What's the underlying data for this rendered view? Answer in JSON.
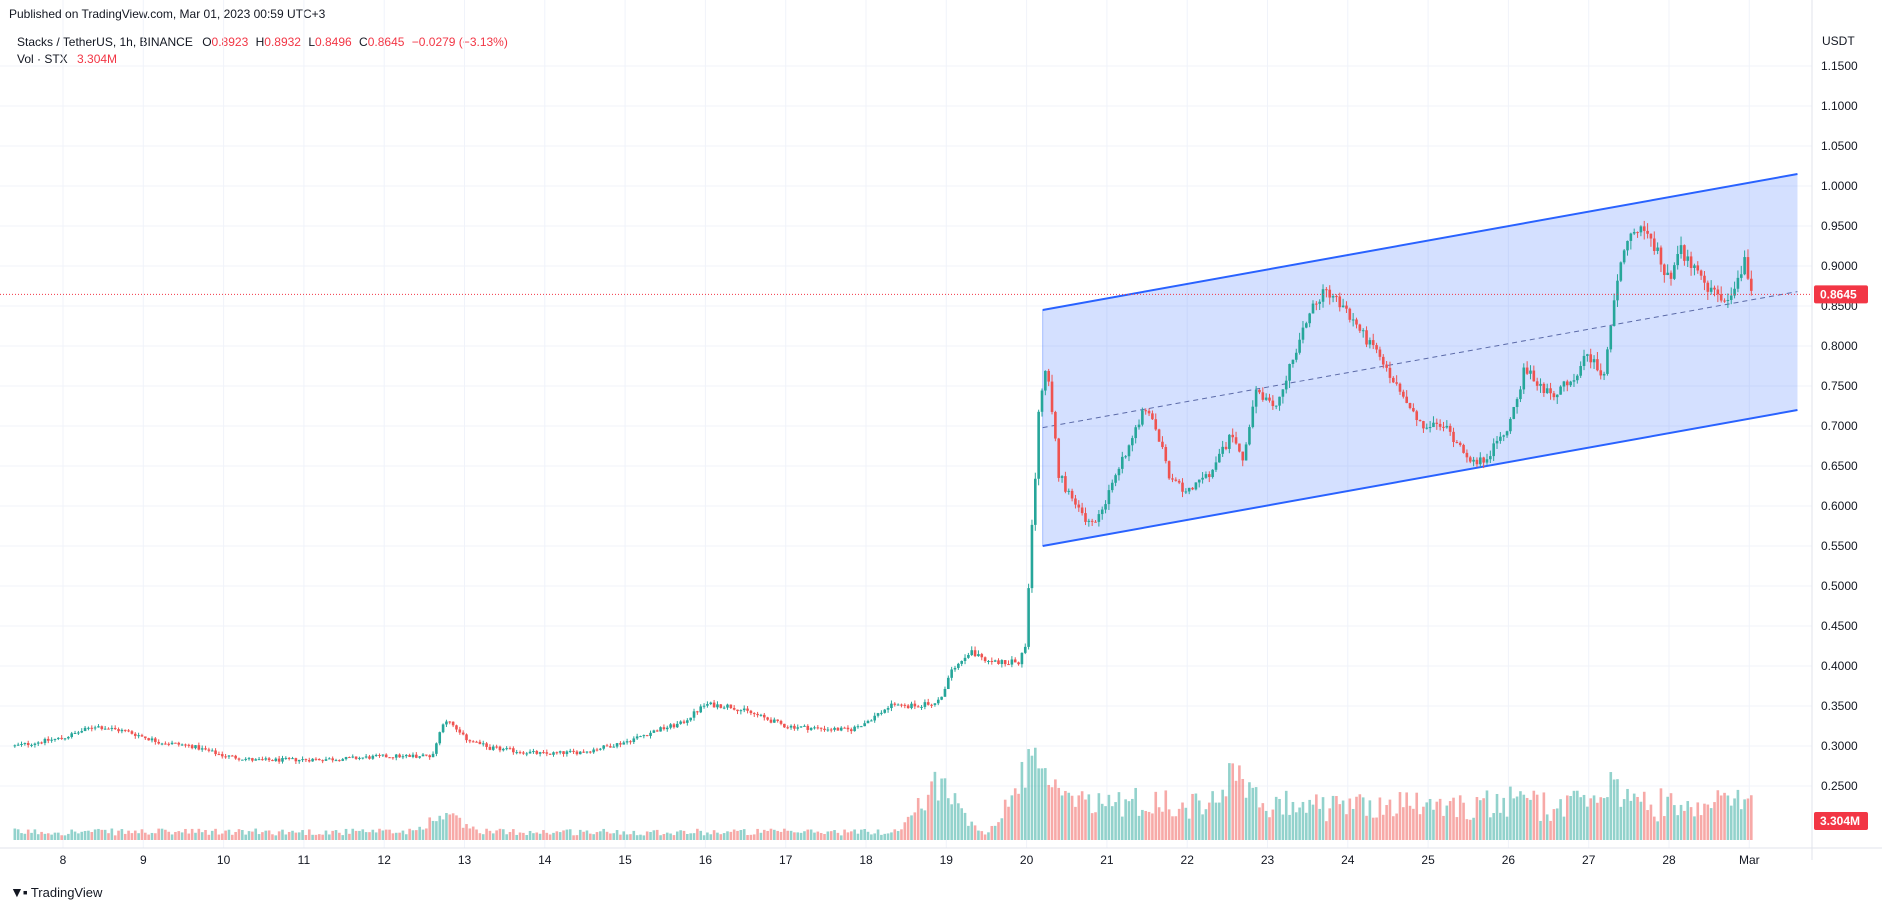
{
  "published": "Published on TradingView.com, Mar 01, 2023 00:59 UTC+3",
  "symbol": {
    "title": "Stacks / TetherUS, 1h, BINANCE",
    "o_label": "O",
    "o": "0.8923",
    "h_label": "H",
    "h": "0.8932",
    "l_label": "L",
    "l": "0.8496",
    "c_label": "C",
    "c": "0.8645",
    "change": "−0.0279 (−3.13%)"
  },
  "volume": {
    "label": "Vol · STX",
    "value": "3.304M"
  },
  "currency": "USDT",
  "price_badge": "0.8645",
  "volume_badge": "3.304M",
  "brand": "TradingView",
  "colors": {
    "up": "#26a69a",
    "down": "#ef5350",
    "channel": "#2962ff",
    "badge": "#f23645"
  },
  "chart_data": {
    "type": "candlestick",
    "y_ticks": [
      "1.1500",
      "1.1000",
      "1.0500",
      "1.0000",
      "0.9500",
      "0.9000",
      "0.8500",
      "0.8000",
      "0.7500",
      "0.7000",
      "0.6500",
      "0.6000",
      "0.5500",
      "0.5000",
      "0.4500",
      "0.4000",
      "0.3500",
      "0.3000",
      "0.2500"
    ],
    "x_ticks": [
      "8",
      "9",
      "10",
      "11",
      "12",
      "13",
      "14",
      "15",
      "16",
      "17",
      "18",
      "19",
      "20",
      "21",
      "22",
      "23",
      "24",
      "25",
      "26",
      "27",
      "28",
      "Mar"
    ],
    "last_price": 0.8645,
    "price_path": [
      [
        7.4,
        0.3
      ],
      [
        8.0,
        0.31
      ],
      [
        8.4,
        0.325
      ],
      [
        8.8,
        0.318
      ],
      [
        9.2,
        0.305
      ],
      [
        9.6,
        0.3
      ],
      [
        10.0,
        0.288
      ],
      [
        10.4,
        0.282
      ],
      [
        11.0,
        0.283
      ],
      [
        11.5,
        0.284
      ],
      [
        12.0,
        0.287
      ],
      [
        12.6,
        0.288
      ],
      [
        12.75,
        0.335
      ],
      [
        13.0,
        0.31
      ],
      [
        13.3,
        0.298
      ],
      [
        13.7,
        0.293
      ],
      [
        14.0,
        0.29
      ],
      [
        14.5,
        0.293
      ],
      [
        15.0,
        0.305
      ],
      [
        15.4,
        0.32
      ],
      [
        15.7,
        0.328
      ],
      [
        16.0,
        0.352
      ],
      [
        16.3,
        0.35
      ],
      [
        16.6,
        0.34
      ],
      [
        17.0,
        0.325
      ],
      [
        17.4,
        0.322
      ],
      [
        17.8,
        0.32
      ],
      [
        18.0,
        0.33
      ],
      [
        18.3,
        0.35
      ],
      [
        18.6,
        0.35
      ],
      [
        18.9,
        0.355
      ],
      [
        19.1,
        0.4
      ],
      [
        19.3,
        0.42
      ],
      [
        19.5,
        0.405
      ],
      [
        19.9,
        0.405
      ],
      [
        20.0,
        0.43
      ],
      [
        20.05,
        0.56
      ],
      [
        20.1,
        0.62
      ],
      [
        20.15,
        0.72
      ],
      [
        20.25,
        0.78
      ],
      [
        20.4,
        0.64
      ],
      [
        20.6,
        0.6
      ],
      [
        20.8,
        0.575
      ],
      [
        21.0,
        0.61
      ],
      [
        21.2,
        0.66
      ],
      [
        21.45,
        0.72
      ],
      [
        21.6,
        0.7
      ],
      [
        21.8,
        0.63
      ],
      [
        22.0,
        0.62
      ],
      [
        22.3,
        0.64
      ],
      [
        22.55,
        0.69
      ],
      [
        22.7,
        0.66
      ],
      [
        22.85,
        0.74
      ],
      [
        23.1,
        0.72
      ],
      [
        23.3,
        0.78
      ],
      [
        23.55,
        0.85
      ],
      [
        23.75,
        0.87
      ],
      [
        24.0,
        0.84
      ],
      [
        24.3,
        0.8
      ],
      [
        24.6,
        0.75
      ],
      [
        24.9,
        0.7
      ],
      [
        25.2,
        0.7
      ],
      [
        25.45,
        0.67
      ],
      [
        25.6,
        0.65
      ],
      [
        25.8,
        0.67
      ],
      [
        26.0,
        0.7
      ],
      [
        26.2,
        0.77
      ],
      [
        26.4,
        0.75
      ],
      [
        26.6,
        0.74
      ],
      [
        26.8,
        0.76
      ],
      [
        27.0,
        0.79
      ],
      [
        27.2,
        0.76
      ],
      [
        27.3,
        0.85
      ],
      [
        27.45,
        0.92
      ],
      [
        27.6,
        0.95
      ],
      [
        27.8,
        0.93
      ],
      [
        28.0,
        0.88
      ],
      [
        28.15,
        0.92
      ],
      [
        28.4,
        0.88
      ],
      [
        28.6,
        0.86
      ],
      [
        28.8,
        0.86
      ],
      [
        28.95,
        0.91
      ],
      [
        29.0,
        0.88
      ],
      [
        29.05,
        0.8645
      ]
    ],
    "channel": {
      "upper": [
        [
          20.2,
          0.845
        ],
        [
          29.6,
          1.015
        ]
      ],
      "lower": [
        [
          20.2,
          0.55
        ],
        [
          29.6,
          0.72
        ]
      ],
      "mid": [
        [
          20.2,
          0.698
        ],
        [
          29.6,
          0.868
        ]
      ]
    },
    "volume_peaks": [
      [
        12.75,
        0.3
      ],
      [
        18.9,
        0.65
      ],
      [
        20.05,
        0.9
      ],
      [
        20.2,
        0.95
      ],
      [
        22.6,
        0.82
      ],
      [
        27.3,
        0.65
      ],
      [
        28.85,
        0.52
      ]
    ]
  }
}
